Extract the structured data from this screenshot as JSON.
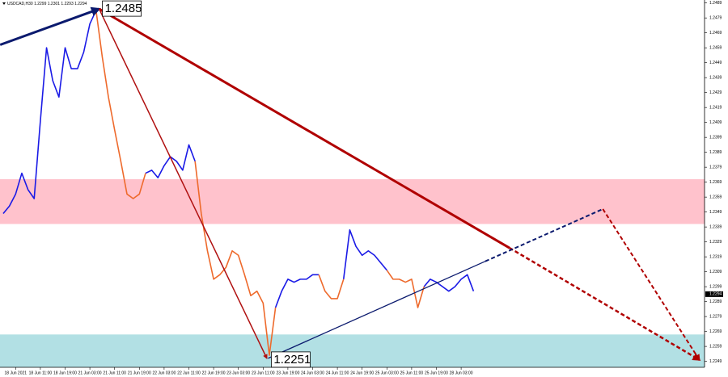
{
  "chart_data": {
    "type": "line",
    "title": "USDCAD,H30 1.2299 1.2301 1.2293 1.2294",
    "categories": [
      null,
      null,
      "18 Jun 2021",
      null,
      null,
      null,
      "18 Jun 11:00",
      null,
      null,
      null,
      "18 Jun 19:00",
      null,
      null,
      null,
      "21 Jun 03:00",
      null,
      null,
      null,
      "21 Jun 11:00",
      null,
      null,
      null,
      "21 Jun 19:00",
      null,
      null,
      null,
      "22 Jun 03:00",
      null,
      null,
      null,
      "22 Jun 11:00",
      null,
      null,
      null,
      "22 Jun 19:00",
      null,
      null,
      null,
      "23 Jun 03:00",
      null,
      null,
      null,
      "23 Jun 11:00",
      null,
      null,
      null,
      "23 Jun 19:00",
      null,
      null,
      null,
      "24 Jun 03:00",
      null,
      null,
      null,
      "24 Jun 11:00",
      null,
      null,
      null,
      "24 Jun 19:00",
      null,
      null,
      null,
      "25 Jun 03:00",
      null,
      null,
      null,
      "25 Jun 11:00",
      null,
      null,
      null,
      "25 Jun 19:00",
      null,
      null,
      null,
      "28 Jun 03:00",
      null,
      null
    ],
    "series": [
      {
        "color": "#1a1ae6",
        "values": [
          1.2348,
          1.2353,
          1.2361,
          1.2375,
          1.2364,
          1.2358,
          1.241,
          1.2459,
          1.2437,
          1.2426,
          1.2459,
          1.2445,
          1.2445,
          1.2456,
          1.2475,
          1.2484,
          null,
          null,
          null,
          null,
          null,
          null,
          null,
          1.2375,
          1.2377,
          1.2372,
          1.238,
          1.2386,
          1.2383,
          1.2377,
          1.2394,
          1.2383,
          null,
          null,
          null,
          null,
          null,
          null,
          null,
          null,
          null,
          null,
          null,
          null,
          1.2285,
          1.2296,
          1.2304,
          1.2302,
          1.2304,
          1.2304,
          1.2307,
          1.2307,
          null,
          null,
          null,
          1.2304,
          1.2337,
          1.2326,
          1.232,
          1.2323,
          1.232,
          1.2315,
          1.231,
          null,
          null,
          null,
          null,
          null,
          1.2299,
          1.2304,
          1.2302,
          1.2299,
          1.2296,
          1.2299,
          1.2304,
          1.2307,
          1.2296
        ]
      },
      {
        "color": "#ee6a2c",
        "values": [
          null,
          null,
          null,
          null,
          null,
          null,
          null,
          null,
          null,
          null,
          null,
          null,
          null,
          null,
          null,
          1.2484,
          1.2453,
          1.2426,
          1.2404,
          1.2383,
          1.2361,
          1.2358,
          1.2361,
          1.2375,
          null,
          null,
          null,
          null,
          null,
          null,
          null,
          1.2383,
          1.2348,
          1.2323,
          1.2304,
          1.2307,
          1.2312,
          1.2323,
          1.232,
          1.2307,
          1.2293,
          1.2296,
          1.2288,
          1.2253,
          1.2285,
          null,
          null,
          null,
          null,
          null,
          null,
          1.2307,
          1.2296,
          1.2291,
          1.2291,
          1.2304,
          null,
          null,
          null,
          null,
          null,
          null,
          1.231,
          1.2304,
          1.2304,
          1.2302,
          1.2304,
          1.2285,
          1.2299,
          null,
          null,
          null,
          null,
          null,
          null,
          null,
          null
        ]
      }
    ],
    "ylim": [
      1.2245,
      1.2491
    ],
    "yticks": [
      1.2249,
      1.2259,
      1.2269,
      1.2279,
      1.2289,
      1.2299,
      1.2309,
      1.2319,
      1.2329,
      1.2339,
      1.2349,
      1.2359,
      1.2369,
      1.2379,
      1.2389,
      1.2399,
      1.2409,
      1.2419,
      1.2429,
      1.2439,
      1.2449,
      1.2459,
      1.2469,
      1.2479,
      1.2489
    ],
    "last_price": 1.2294,
    "zones": [
      {
        "from": 1.2371,
        "to": 1.2341,
        "color": "#ffc2cc"
      },
      {
        "from": 1.2267,
        "to": 1.2245,
        "color": "#b2e0e4"
      }
    ],
    "waves": [
      {
        "color": "#0b1a6e",
        "width": 3,
        "dashed": false,
        "arrow": true,
        "points": [
          {
            "x": -0.5,
            "y": 1.2461
          },
          {
            "x": 15.5,
            "y": 1.2485
          }
        ]
      },
      {
        "color": "#b00000",
        "width": 3,
        "dashed": false,
        "arrow": false,
        "points": [
          {
            "x": 15.5,
            "y": 1.2485
          },
          {
            "x": 81.8,
            "y": 1.2325
          }
        ]
      },
      {
        "color": "#b00000",
        "width": 2.5,
        "dashed": true,
        "arrow": true,
        "points": [
          {
            "x": 81.8,
            "y": 1.2325
          },
          {
            "x": 112.5,
            "y": 1.225
          }
        ]
      },
      {
        "color": "#b01010",
        "width": 1.5,
        "dashed": false,
        "arrow": true,
        "points": [
          {
            "x": 15.5,
            "y": 1.2485
          },
          {
            "x": 42.6,
            "y": 1.2251
          }
        ]
      },
      {
        "color": "#0b1a6e",
        "width": 1.3,
        "dashed": false,
        "arrow": false,
        "points": [
          {
            "x": 42.8,
            "y": 1.2251
          },
          {
            "x": 77.9,
            "y": 1.2316
          }
        ]
      },
      {
        "color": "#0b1a6e",
        "width": 2,
        "dashed": true,
        "arrow": false,
        "points": [
          {
            "x": 77.9,
            "y": 1.2316
          },
          {
            "x": 96.9,
            "y": 1.2351
          }
        ]
      },
      {
        "color": "#b00000",
        "width": 2,
        "dashed": true,
        "arrow": true,
        "points": [
          {
            "x": 96.9,
            "y": 1.2351
          },
          {
            "x": 112.5,
            "y": 1.225
          }
        ]
      }
    ],
    "wave_labels": [
      {
        "x": 15.5,
        "y": 1.2485
      },
      {
        "x": 42.8,
        "y": 1.2251
      }
    ]
  }
}
